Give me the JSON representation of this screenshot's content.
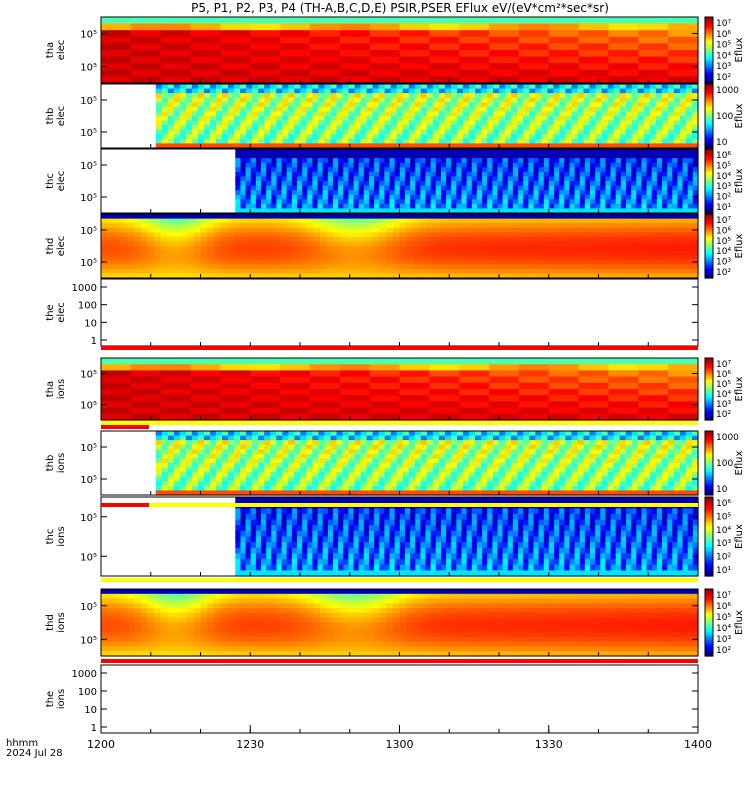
{
  "title": "P5, P1, P2, P3, P4 (TH-A,B,C,D,E) PSIR,PSER EFlux eV/(eV*cm²*sec*sr)",
  "footer": {
    "format": "hhmm",
    "date": "2024 Jul 28"
  },
  "chart_data": {
    "type": "heatmap",
    "title": "P5, P1, P2, P3, P4 (TH-A,B,C,D,E) PSIR,PSER EFlux eV/(eV*cm²*sec*sr)",
    "x_ticks": [
      "1200",
      "1230",
      "1300",
      "1330",
      "1400"
    ],
    "colorbar_label": "Eflux",
    "panels": [
      {
        "id": "tha_elec",
        "label": [
          "tha",
          "elec"
        ],
        "yticks": [
          "10⁵",
          "10⁵"
        ],
        "cbar": [
          "10⁷",
          "10⁶",
          "10⁵",
          "10⁴",
          "10³",
          "10²"
        ],
        "data_start": "1200",
        "scheme": "red"
      },
      {
        "id": "thb_elec",
        "label": [
          "thb",
          "elec"
        ],
        "yticks": [
          "10⁵",
          "10⁵"
        ],
        "cbar": [
          "1000",
          "100",
          "10"
        ],
        "data_start": "1211",
        "scheme": "green"
      },
      {
        "id": "thc_elec",
        "label": [
          "thc",
          "elec"
        ],
        "yticks": [
          "10⁵",
          "10⁵"
        ],
        "cbar": [
          "10⁶",
          "10⁵",
          "10⁴",
          "10³",
          "10²",
          "10¹"
        ],
        "data_start": "1227",
        "scheme": "blue"
      },
      {
        "id": "thd_elec",
        "label": [
          "thd",
          "elec"
        ],
        "yticks": [
          "10⁵",
          "10⁵"
        ],
        "cbar": [
          "10⁷",
          "10⁶",
          "10⁵",
          "10⁴",
          "10³",
          "10²"
        ],
        "data_start": "1200",
        "scheme": "yellow"
      },
      {
        "id": "the_elec",
        "label": [
          "the",
          "elec"
        ],
        "yticks": [
          "1000",
          "100",
          "10",
          "1"
        ],
        "cbar": [],
        "data_start": null,
        "scheme": "empty"
      },
      {
        "id": "tha_ions",
        "label": [
          "tha",
          "ions"
        ],
        "yticks": [
          "10⁵",
          "10⁵"
        ],
        "cbar": [
          "10⁷",
          "10⁶",
          "10⁵",
          "10⁴",
          "10³",
          "10²"
        ],
        "data_start": "1200",
        "scheme": "red"
      },
      {
        "id": "thb_ions",
        "label": [
          "thb",
          "ions"
        ],
        "yticks": [
          "10⁵",
          "10⁵"
        ],
        "cbar": [
          "1000",
          "100",
          "10"
        ],
        "data_start": "1211",
        "scheme": "green"
      },
      {
        "id": "thc_ions",
        "label": [
          "thc",
          "ions"
        ],
        "yticks": [
          "10⁵",
          "10⁵"
        ],
        "cbar": [
          "10⁶",
          "10⁵",
          "10⁴",
          "10³",
          "10²",
          "10¹"
        ],
        "data_start": "1227",
        "scheme": "blue"
      },
      {
        "id": "thd_ions",
        "label": [
          "thd",
          "ions"
        ],
        "yticks": [
          "10⁵",
          "10⁵"
        ],
        "cbar": [
          "10⁷",
          "10⁶",
          "10⁵",
          "10⁴",
          "10³",
          "10²"
        ],
        "data_start": "1200",
        "scheme": "yellow"
      },
      {
        "id": "the_ions",
        "label": [
          "the",
          "ions"
        ],
        "yticks": [
          "1000",
          "100",
          "10",
          "1"
        ],
        "cbar": [],
        "data_start": null,
        "scheme": "empty"
      }
    ],
    "x_range": [
      "1200",
      "1400"
    ],
    "grid": false
  }
}
